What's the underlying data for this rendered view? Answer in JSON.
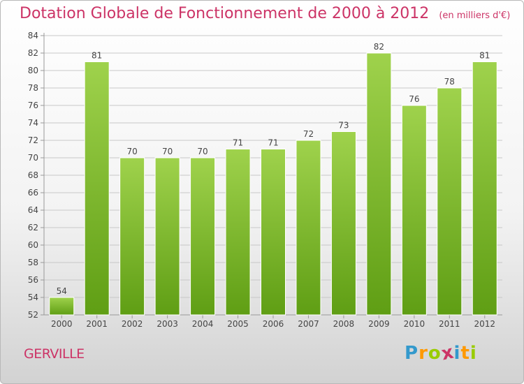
{
  "title": "Dotation Globale de Fonctionnement de 2000 à 2012",
  "unit_note": "(en milliers d'€)",
  "commune": "GERVILLE",
  "logo": {
    "text": "Proxiti",
    "letters": [
      "P",
      "r",
      "o",
      "x",
      "i",
      "t",
      "i"
    ],
    "letter_colors": [
      "#3399cc",
      "#ff9900",
      "#99cc00",
      "#cc3366",
      "#3399cc",
      "#ff9900",
      "#99cc00"
    ]
  },
  "colors": {
    "title": "#cc3366",
    "bar_top": "#9fd24c",
    "bar_bottom": "#5f9e14",
    "grid": "#c8c8c8"
  },
  "chart_data": {
    "type": "bar",
    "categories": [
      "2000",
      "2001",
      "2002",
      "2003",
      "2004",
      "2005",
      "2006",
      "2007",
      "2008",
      "2009",
      "2010",
      "2011",
      "2012"
    ],
    "values": [
      54,
      81,
      70,
      70,
      70,
      71,
      71,
      72,
      73,
      82,
      76,
      78,
      81
    ],
    "title": "Dotation Globale de Fonctionnement de 2000 à 2012",
    "ylim": [
      52,
      84
    ],
    "yticks": [
      52,
      54,
      56,
      58,
      60,
      62,
      64,
      66,
      68,
      70,
      72,
      74,
      76,
      78,
      80,
      82,
      84
    ],
    "grid": true,
    "data_labels": true
  }
}
